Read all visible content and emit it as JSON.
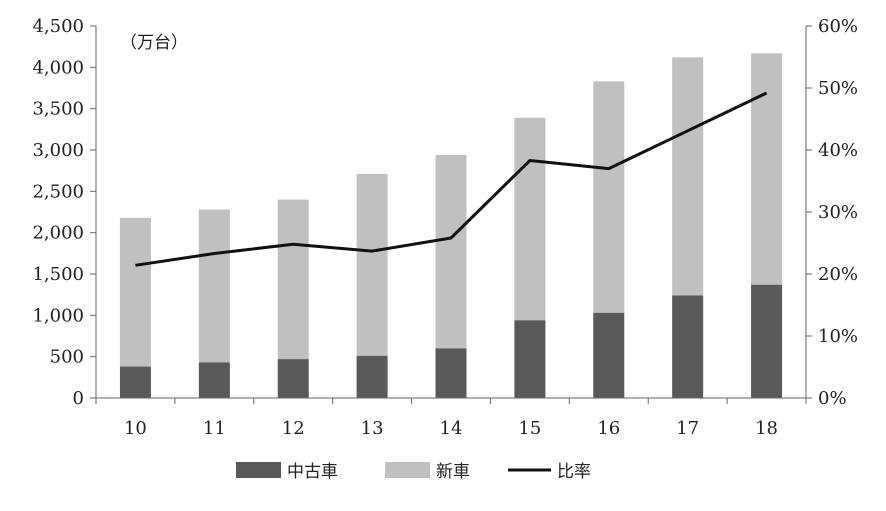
{
  "chart_data": {
    "type": "bar",
    "stacked": true,
    "categories": [
      "10",
      "11",
      "12",
      "13",
      "14",
      "15",
      "16",
      "17",
      "18"
    ],
    "unit_label": "（万台）",
    "series": [
      {
        "name": "中古車",
        "kind": "bar",
        "axis": "left",
        "color": "#595959",
        "values": [
          380,
          430,
          470,
          510,
          600,
          940,
          1030,
          1240,
          1370
        ]
      },
      {
        "name": "新車",
        "kind": "bar",
        "axis": "left",
        "color": "#c0c0c0",
        "values": [
          1800,
          1850,
          1930,
          2200,
          2340,
          2450,
          2800,
          2880,
          2800
        ]
      },
      {
        "name": "比率",
        "kind": "line",
        "axis": "right",
        "color": "#111111",
        "values": [
          21.4,
          23.3,
          24.8,
          23.7,
          25.8,
          38.3,
          37.0,
          43.1,
          49.2
        ]
      }
    ],
    "y_left": {
      "min": 0,
      "max": 4500,
      "step": 500,
      "tick_labels": [
        "0",
        "500",
        "1,000",
        "1,500",
        "2,000",
        "2,500",
        "3,000",
        "3,500",
        "4,000",
        "4,500"
      ]
    },
    "y_right": {
      "min": 0,
      "max": 60,
      "step": 10,
      "tick_labels": [
        "0%",
        "10%",
        "20%",
        "30%",
        "40%",
        "50%",
        "60%"
      ]
    },
    "grid": false,
    "legend": {
      "position": "bottom",
      "labels": [
        "中古車",
        "新車",
        "比率"
      ]
    }
  }
}
